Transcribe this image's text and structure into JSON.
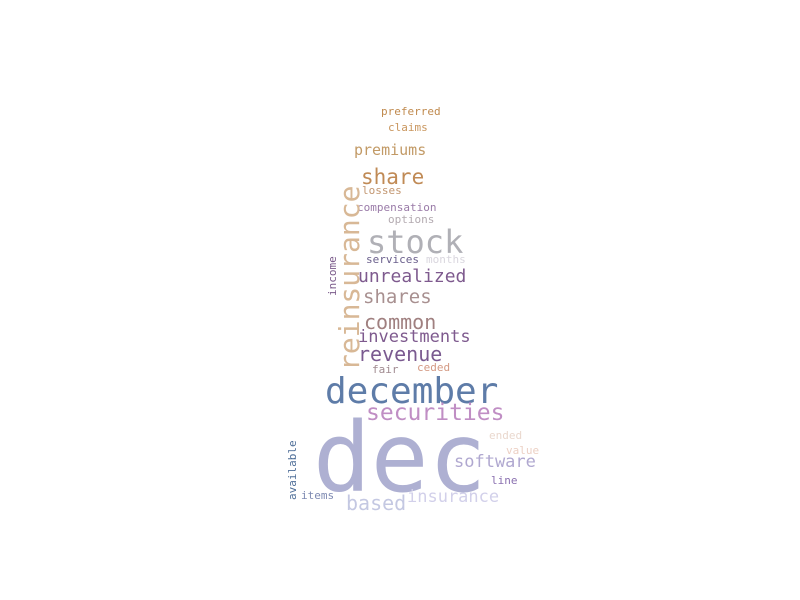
{
  "words": {
    "preferred": {
      "text": "preferred",
      "color": "#c08a4e"
    },
    "claims": {
      "text": "claims",
      "color": "#c9965e"
    },
    "premiums": {
      "text": "premiums",
      "color": "#c29a66"
    },
    "share": {
      "text": "share",
      "color": "#c08a55"
    },
    "losses": {
      "text": "losses",
      "color": "#c29670"
    },
    "compensation": {
      "text": "compensation",
      "color": "#9a7ba8"
    },
    "options": {
      "text": "options",
      "color": "#b3aab0"
    },
    "stock": {
      "text": "stock",
      "color": "#b0b0b6"
    },
    "reinsurance": {
      "text": "reinsurance",
      "color": "#d8b896"
    },
    "services": {
      "text": "services",
      "color": "#6a5f8c"
    },
    "months": {
      "text": "months",
      "color": "#d9d6de"
    },
    "income": {
      "text": "income",
      "color": "#7a5a8a"
    },
    "unrealized": {
      "text": "unrealized",
      "color": "#7e5a8e"
    },
    "shares": {
      "text": "shares",
      "color": "#a89090"
    },
    "common": {
      "text": "common",
      "color": "#a08080"
    },
    "investments": {
      "text": "investments",
      "color": "#7e5a8e"
    },
    "revenue": {
      "text": "revenue",
      "color": "#7a5a90"
    },
    "fair": {
      "text": "fair",
      "color": "#a08a90"
    },
    "ceded": {
      "text": "ceded",
      "color": "#d49a84"
    },
    "december": {
      "text": "december",
      "color": "#5e7ca8"
    },
    "securities": {
      "text": "securities",
      "color": "#c08ec4"
    },
    "dec": {
      "text": "dec",
      "color": "#aeb0d2"
    },
    "ended": {
      "text": "ended",
      "color": "#ead8ce"
    },
    "available": {
      "text": "available",
      "color": "#4e6e98"
    },
    "value": {
      "text": "value",
      "color": "#ecd0c4"
    },
    "software": {
      "text": "software",
      "color": "#b0a8d0"
    },
    "line": {
      "text": "line",
      "color": "#8a70b0"
    },
    "items": {
      "text": "items",
      "color": "#7e8ab2"
    },
    "insurance": {
      "text": "insurance",
      "color": "#d2d0ea"
    },
    "based": {
      "text": "based",
      "color": "#c4c8e2"
    }
  }
}
